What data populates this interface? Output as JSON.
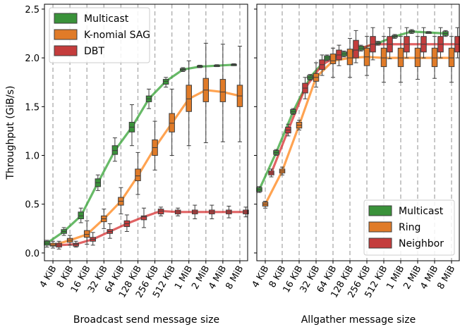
{
  "figure": {
    "ylabel": "Throughput (GiB/s)"
  },
  "chart_data": [
    {
      "type": "box",
      "xlabel": "Broadcast send message size",
      "ylabel": "Throughput (GiB/s)",
      "ylim": [
        -0.08,
        2.55
      ],
      "yticks": [
        "0.0",
        "0.5",
        "1.0",
        "1.5",
        "2.0",
        "2.5"
      ],
      "ytick_values": [
        0.0,
        0.5,
        1.0,
        1.5,
        2.0,
        2.5
      ],
      "categories": [
        "4 KiB",
        "8 KiB",
        "16 KiB",
        "32 KiB",
        "64 KiB",
        "128 KiB",
        "256 KiB",
        "512 KiB",
        "1 MiB",
        "2 MiB",
        "4 MiB",
        "8 MiB"
      ],
      "grid": "dashed vertical lines between categories",
      "legend": "top-left",
      "series": [
        {
          "name": "Multicast",
          "color": "#2ca02c",
          "box_color": "#3a923a",
          "values": [
            0.1,
            0.22,
            0.38,
            0.72,
            1.05,
            1.29,
            1.58,
            1.76,
            1.88,
            1.91,
            1.92,
            1.93
          ],
          "box": [
            [
              0.08,
              0.12
            ],
            [
              0.2,
              0.24
            ],
            [
              0.35,
              0.42
            ],
            [
              0.68,
              0.76
            ],
            [
              1.01,
              1.1
            ],
            [
              1.24,
              1.34
            ],
            [
              1.55,
              1.61
            ],
            [
              1.73,
              1.78
            ],
            [
              1.87,
              1.89
            ],
            [
              1.905,
              1.92
            ],
            [
              1.915,
              1.925
            ],
            [
              1.925,
              1.935
            ]
          ],
          "whisker": [
            [
              0.06,
              0.13
            ],
            [
              0.18,
              0.26
            ],
            [
              0.31,
              0.46
            ],
            [
              0.64,
              0.8
            ],
            [
              0.94,
              1.18
            ],
            [
              1.1,
              1.52
            ],
            [
              1.48,
              1.68
            ],
            [
              1.7,
              1.8
            ],
            [
              1.86,
              1.9
            ],
            [
              1.9,
              1.925
            ],
            [
              1.91,
              1.93
            ],
            [
              1.92,
              1.94
            ]
          ]
        },
        {
          "name": "K-nomial SAG",
          "color": "#ff7f0e",
          "box_color": "#e07b28",
          "values": [
            0.08,
            0.13,
            0.19,
            0.35,
            0.53,
            0.79,
            1.08,
            1.33,
            1.58,
            1.67,
            1.65,
            1.61
          ],
          "box": [
            [
              0.07,
              0.1
            ],
            [
              0.11,
              0.15
            ],
            [
              0.16,
              0.23
            ],
            [
              0.32,
              0.38
            ],
            [
              0.49,
              0.57
            ],
            [
              0.74,
              0.86
            ],
            [
              1.0,
              1.16
            ],
            [
              1.24,
              1.43
            ],
            [
              1.45,
              1.72
            ],
            [
              1.55,
              1.79
            ],
            [
              1.55,
              1.78
            ],
            [
              1.5,
              1.72
            ]
          ],
          "whisker": [
            [
              0.05,
              0.12
            ],
            [
              0.08,
              0.18
            ],
            [
              0.09,
              0.33
            ],
            [
              0.25,
              0.45
            ],
            [
              0.4,
              0.67
            ],
            [
              0.6,
              1.03
            ],
            [
              0.85,
              1.35
            ],
            [
              1.0,
              1.68
            ],
            [
              1.1,
              1.97
            ],
            [
              1.13,
              2.15
            ],
            [
              1.14,
              2.14
            ],
            [
              1.14,
              2.12
            ]
          ]
        },
        {
          "name": "DBT",
          "color": "#d62728",
          "box_color": "#c43c3c",
          "values": [
            0.08,
            0.09,
            0.14,
            0.22,
            0.3,
            0.37,
            0.43,
            0.42,
            0.42,
            0.42,
            0.42,
            0.42
          ],
          "box": [
            [
              0.06,
              0.1
            ],
            [
              0.07,
              0.1
            ],
            [
              0.12,
              0.16
            ],
            [
              0.2,
              0.24
            ],
            [
              0.27,
              0.33
            ],
            [
              0.34,
              0.38
            ],
            [
              0.4,
              0.45
            ],
            [
              0.4,
              0.44
            ],
            [
              0.4,
              0.44
            ],
            [
              0.4,
              0.44
            ],
            [
              0.4,
              0.44
            ],
            [
              0.4,
              0.44
            ]
          ],
          "whisker": [
            [
              0.04,
              0.12
            ],
            [
              0.06,
              0.12
            ],
            [
              0.08,
              0.21
            ],
            [
              0.15,
              0.3
            ],
            [
              0.22,
              0.39
            ],
            [
              0.26,
              0.46
            ],
            [
              0.38,
              0.47
            ],
            [
              0.38,
              0.46
            ],
            [
              0.35,
              0.49
            ],
            [
              0.35,
              0.49
            ],
            [
              0.36,
              0.48
            ],
            [
              0.37,
              0.47
            ]
          ]
        }
      ]
    },
    {
      "type": "box",
      "xlabel": "Allgather message size",
      "ylim": [
        -0.08,
        2.55
      ],
      "categories": [
        "4 KiB",
        "8 KiB",
        "16 KiB",
        "32 KiB",
        "64 KiB",
        "128 KiB",
        "256 KiB",
        "512 KiB",
        "1 MiB",
        "2 MiB",
        "4 MiB",
        "8 MiB"
      ],
      "grid": "dashed vertical lines between categories",
      "legend": "bottom-right",
      "series": [
        {
          "name": "Multicast",
          "color": "#2ca02c",
          "box_color": "#3a923a",
          "values": [
            0.65,
            1.03,
            1.45,
            1.8,
            2.0,
            2.04,
            2.1,
            2.15,
            2.22,
            2.27,
            2.26,
            2.25
          ],
          "box": [
            [
              0.63,
              0.67
            ],
            [
              1.01,
              1.05
            ],
            [
              1.43,
              1.47
            ],
            [
              1.78,
              1.82
            ],
            [
              1.98,
              2.02
            ],
            [
              2.02,
              2.06
            ],
            [
              2.08,
              2.12
            ],
            [
              2.14,
              2.16
            ],
            [
              2.21,
              2.23
            ],
            [
              2.26,
              2.28
            ],
            [
              2.255,
              2.265
            ],
            [
              2.23,
              2.27
            ]
          ],
          "whisker": [
            [
              0.62,
              0.68
            ],
            [
              1.0,
              1.06
            ],
            [
              1.42,
              1.48
            ],
            [
              1.77,
              1.83
            ],
            [
              1.97,
              2.03
            ],
            [
              2.01,
              2.07
            ],
            [
              2.07,
              2.13
            ],
            [
              2.13,
              2.17
            ],
            [
              2.2,
              2.24
            ],
            [
              2.25,
              2.29
            ],
            [
              2.25,
              2.27
            ],
            [
              2.22,
              2.28
            ]
          ]
        },
        {
          "name": "Ring",
          "color": "#ff7f0e",
          "box_color": "#e07b28",
          "values": [
            0.5,
            0.84,
            1.31,
            1.8,
            1.97,
            2.0,
            2.01,
            2.0,
            2.0,
            2.0,
            2.0,
            2.0
          ],
          "box": [
            [
              0.48,
              0.52
            ],
            [
              0.82,
              0.86
            ],
            [
              1.28,
              1.34
            ],
            [
              1.76,
              1.84
            ],
            [
              1.94,
              2.04
            ],
            [
              1.93,
              2.09
            ],
            [
              1.92,
              2.1
            ],
            [
              1.91,
              2.1
            ],
            [
              1.91,
              2.1
            ],
            [
              1.91,
              2.1
            ],
            [
              1.91,
              2.1
            ],
            [
              1.91,
              2.1
            ]
          ],
          "whisker": [
            [
              0.46,
              0.53
            ],
            [
              0.8,
              0.88
            ],
            [
              1.26,
              1.36
            ],
            [
              1.7,
              1.95
            ],
            [
              1.8,
              2.1
            ],
            [
              1.8,
              2.2
            ],
            [
              1.82,
              2.22
            ],
            [
              1.75,
              2.22
            ],
            [
              1.75,
              2.22
            ],
            [
              1.78,
              2.22
            ],
            [
              1.79,
              2.22
            ],
            [
              1.75,
              2.22
            ]
          ]
        },
        {
          "name": "Neighbor",
          "color": "#d62728",
          "box_color": "#c43c3c",
          "values": [
            0.82,
            1.26,
            1.69,
            1.93,
            2.03,
            2.08,
            2.14,
            2.14,
            2.14,
            2.14,
            2.14,
            2.14
          ],
          "box": [
            [
              0.8,
              0.84
            ],
            [
              1.23,
              1.29
            ],
            [
              1.64,
              1.74
            ],
            [
              1.88,
              1.98
            ],
            [
              1.98,
              2.08
            ],
            [
              2.0,
              2.18
            ],
            [
              2.06,
              2.22
            ],
            [
              2.06,
              2.22
            ],
            [
              2.06,
              2.22
            ],
            [
              2.06,
              2.22
            ],
            [
              2.06,
              2.22
            ],
            [
              2.06,
              2.22
            ]
          ],
          "whisker": [
            [
              0.78,
              0.86
            ],
            [
              1.2,
              1.32
            ],
            [
              1.58,
              1.8
            ],
            [
              1.82,
              2.03
            ],
            [
              1.92,
              2.13
            ],
            [
              1.95,
              2.28
            ],
            [
              1.98,
              2.31
            ],
            [
              1.99,
              2.31
            ],
            [
              2.0,
              2.31
            ],
            [
              2.0,
              2.31
            ],
            [
              2.0,
              2.31
            ],
            [
              2.0,
              2.31
            ]
          ]
        }
      ]
    }
  ]
}
